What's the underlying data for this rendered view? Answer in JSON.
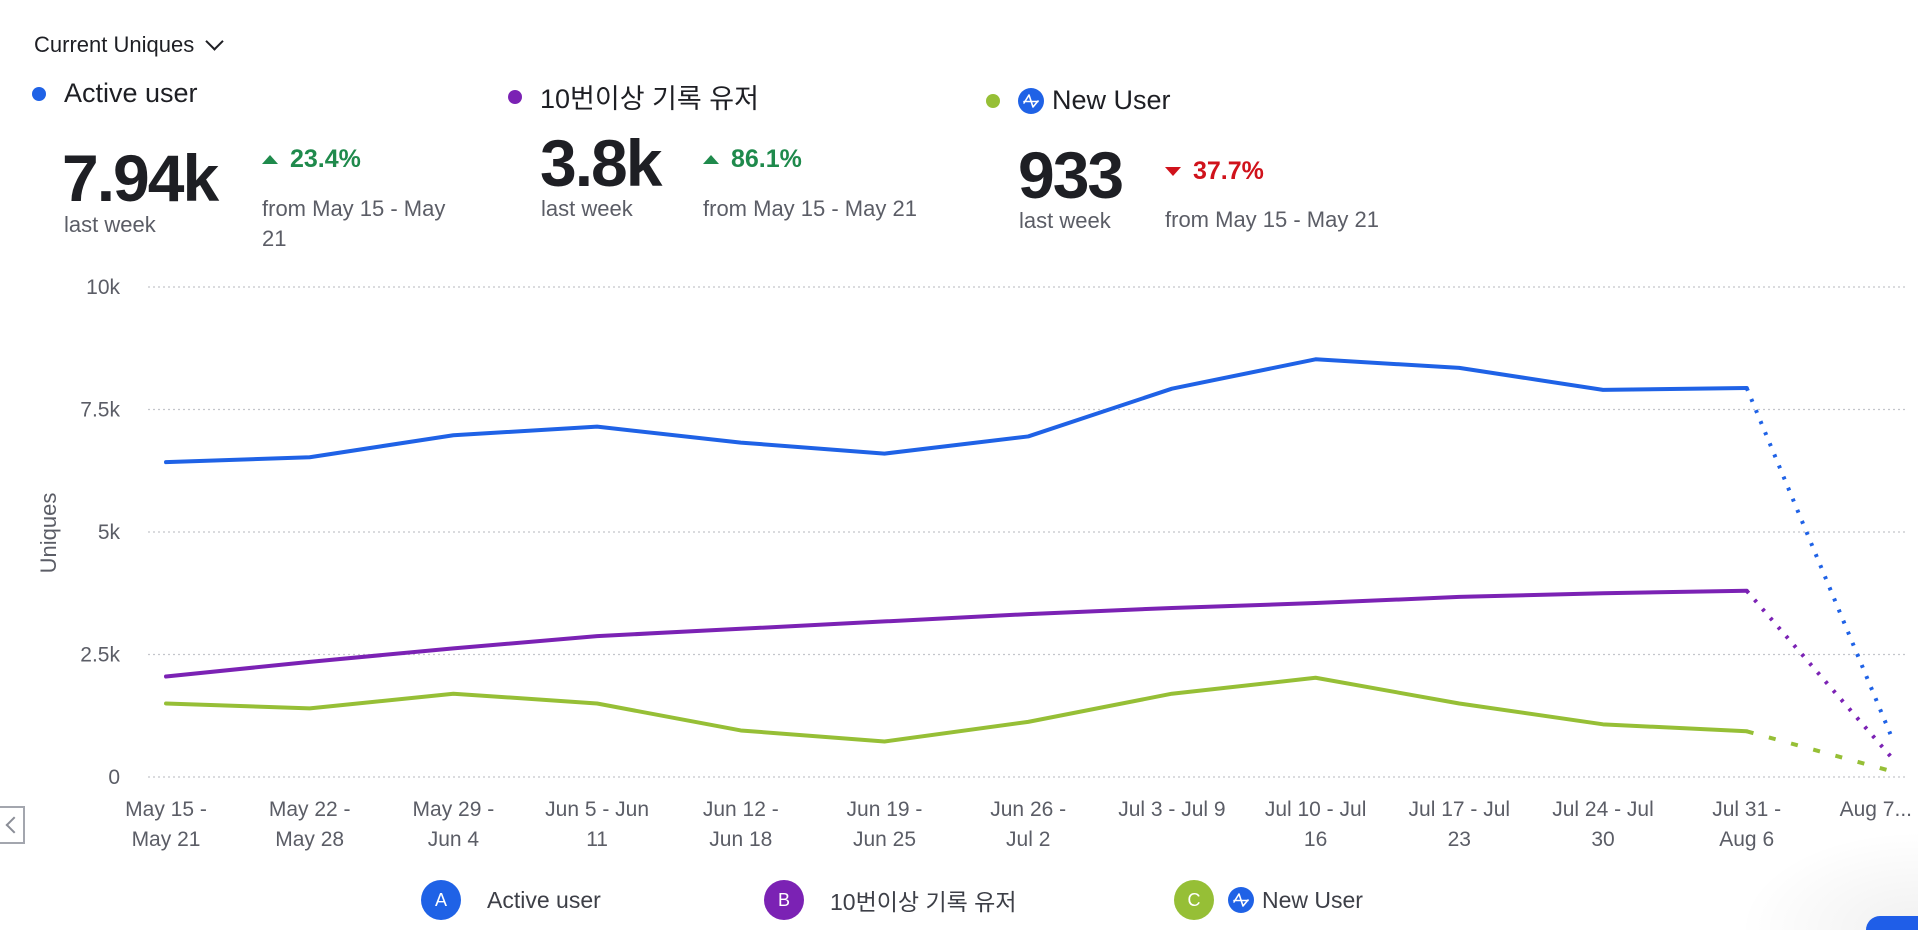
{
  "header": {
    "metric_selector": "Current Uniques"
  },
  "summary": [
    {
      "name": "Active user",
      "color": "#1f62e6",
      "value": "7.94k",
      "period": "last week",
      "change": "23.4%",
      "direction": "up",
      "from_line1": "from May 15 - May",
      "from_line2": "21"
    },
    {
      "name": "10번이상 기록 유저",
      "color": "#7b22b4",
      "value": "3.8k",
      "period": "last week",
      "change": "86.1%",
      "direction": "up",
      "from_line1": "from May 15 - May 21",
      "from_line2": ""
    },
    {
      "name": "New User",
      "color": "#96bf36",
      "icon": "amplitude-icon",
      "value": "933",
      "period": "last week",
      "change": "37.7%",
      "direction": "down",
      "from_line1": "from May 15 - May 21",
      "from_line2": ""
    }
  ],
  "legend": [
    {
      "badge": "A",
      "label": "Active user",
      "color": "#1f62e6"
    },
    {
      "badge": "B",
      "label": "10번이상 기록 유저",
      "color": "#7b22b4"
    },
    {
      "badge": "C",
      "label": "New User",
      "color": "#96bf36",
      "icon": "amplitude-icon"
    }
  ],
  "chart_data": {
    "type": "line",
    "title": "",
    "xlabel": "",
    "ylabel": "Uniques",
    "ylim": [
      0,
      10000
    ],
    "yticks": [
      {
        "value": 0,
        "label": "0"
      },
      {
        "value": 2500,
        "label": "2.5k"
      },
      {
        "value": 5000,
        "label": "5k"
      },
      {
        "value": 7500,
        "label": "7.5k"
      },
      {
        "value": 10000,
        "label": "10k"
      }
    ],
    "grid": true,
    "categories": [
      [
        "May 15 -",
        "May 21"
      ],
      [
        "May 22 -",
        "May 28"
      ],
      [
        "May 29 -",
        "Jun 4"
      ],
      [
        "Jun 5 - Jun",
        "11"
      ],
      [
        "Jun 12 -",
        "Jun 18"
      ],
      [
        "Jun 19 -",
        "Jun 25"
      ],
      [
        "Jun 26 -",
        "Jul 2"
      ],
      [
        "Jul 3 - Jul 9",
        ""
      ],
      [
        "Jul 10 - Jul",
        "16"
      ],
      [
        "Jul 17 - Jul",
        "23"
      ],
      [
        "Jul 24 - Jul",
        "30"
      ],
      [
        "Jul 31 -",
        "Aug 6"
      ],
      [
        "Aug 7...",
        ""
      ]
    ],
    "incomplete_from_index": 11,
    "series": [
      {
        "name": "Active user",
        "color": "#1f62e6",
        "style": "dotted-incomplete",
        "values": [
          6425,
          6525,
          6975,
          7150,
          6825,
          6600,
          6950,
          7925,
          8525,
          8350,
          7900,
          7940,
          875
        ]
      },
      {
        "name": "10번이상 기록 유저",
        "color": "#7b22b4",
        "style": "dotted-incomplete",
        "values": [
          2050,
          2350,
          2625,
          2875,
          3025,
          3175,
          3325,
          3450,
          3550,
          3675,
          3750,
          3800,
          425
        ]
      },
      {
        "name": "New User",
        "color": "#96bf36",
        "style": "dashed-incomplete",
        "values": [
          1500,
          1400,
          1700,
          1500,
          950,
          725,
          1125,
          1700,
          2025,
          1500,
          1075,
          933,
          125
        ]
      }
    ]
  }
}
